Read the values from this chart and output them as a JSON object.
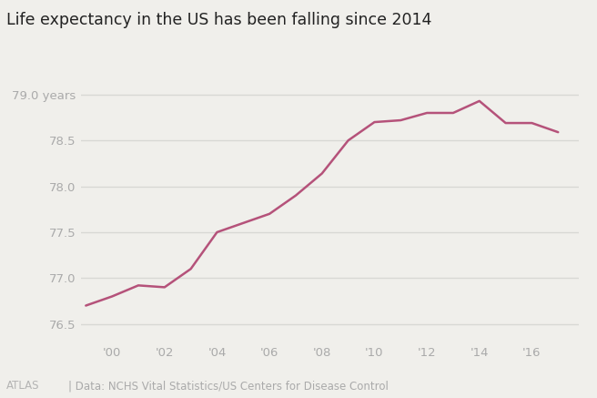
{
  "title": "Life expectancy in the US has been falling since 2014",
  "years": [
    1999,
    2000,
    2001,
    2002,
    2003,
    2004,
    2005,
    2006,
    2007,
    2008,
    2009,
    2010,
    2011,
    2012,
    2013,
    2014,
    2015,
    2016,
    2017
  ],
  "life_expectancy": [
    76.7,
    76.8,
    76.92,
    76.9,
    77.1,
    77.5,
    77.6,
    77.7,
    77.9,
    78.14,
    78.5,
    78.7,
    78.72,
    78.8,
    78.8,
    78.93,
    78.69,
    78.69,
    78.59
  ],
  "line_color": "#b5527a",
  "bg_color": "#f0efeb",
  "grid_color": "#d8d8d4",
  "axis_label_color": "#aaaaaa",
  "title_color": "#222222",
  "footer_text": "| Data: NCHS Vital Statistics/US Centers for Disease Control",
  "atlas_text": "ATLAS",
  "ylim": [
    76.3,
    79.25
  ],
  "yticks": [
    76.5,
    77.0,
    77.5,
    78.0,
    78.5,
    79.0
  ],
  "ytick_labels": [
    "76.5",
    "77.0",
    "77.5",
    "78.0",
    "78.5",
    "79.0 years"
  ],
  "xtick_positions": [
    2000,
    2002,
    2004,
    2006,
    2008,
    2010,
    2012,
    2014,
    2016
  ],
  "xtick_labels": [
    "'00",
    "'02",
    "'04",
    "'06",
    "'08",
    "'10",
    "'12",
    "'14",
    "'16"
  ],
  "line_width": 1.8
}
